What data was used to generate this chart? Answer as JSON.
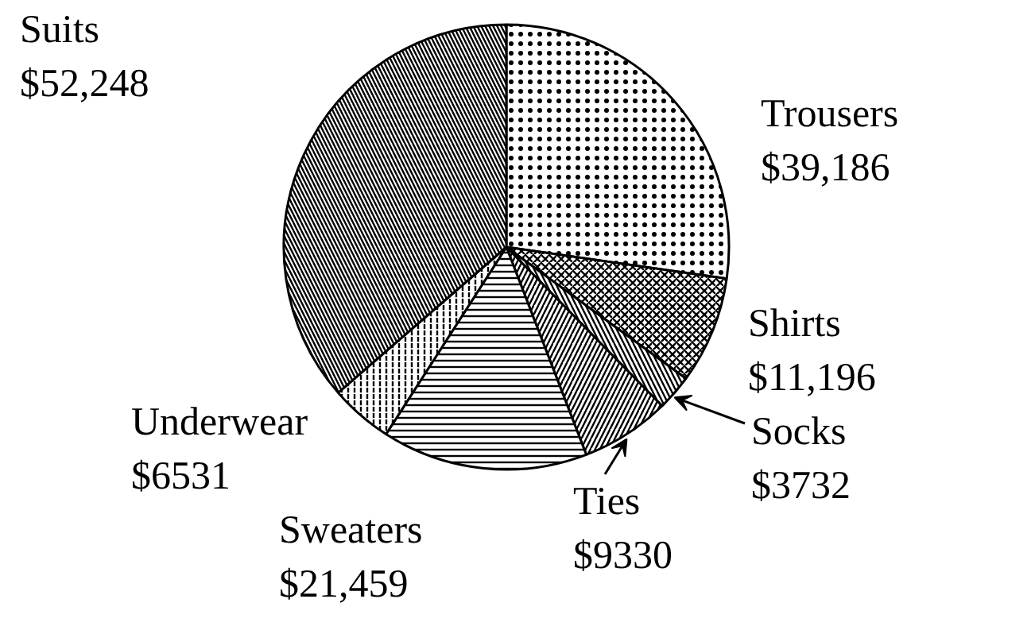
{
  "chart_data": {
    "type": "pie",
    "categories": [
      "Trousers",
      "Shirts",
      "Socks",
      "Ties",
      "Sweaters",
      "Underwear",
      "Suits"
    ],
    "values": [
      39186,
      11196,
      3732,
      9330,
      21459,
      6531,
      52248
    ],
    "value_labels": [
      "$39,186",
      "$11,196",
      "$3732",
      "$9330",
      "$21,459",
      "$6531",
      "$52,248"
    ],
    "colors": [
      "#ffffff",
      "#ffffff",
      "#ffffff",
      "#ffffff",
      "#ffffff",
      "#ffffff",
      "#ffffff"
    ]
  }
}
